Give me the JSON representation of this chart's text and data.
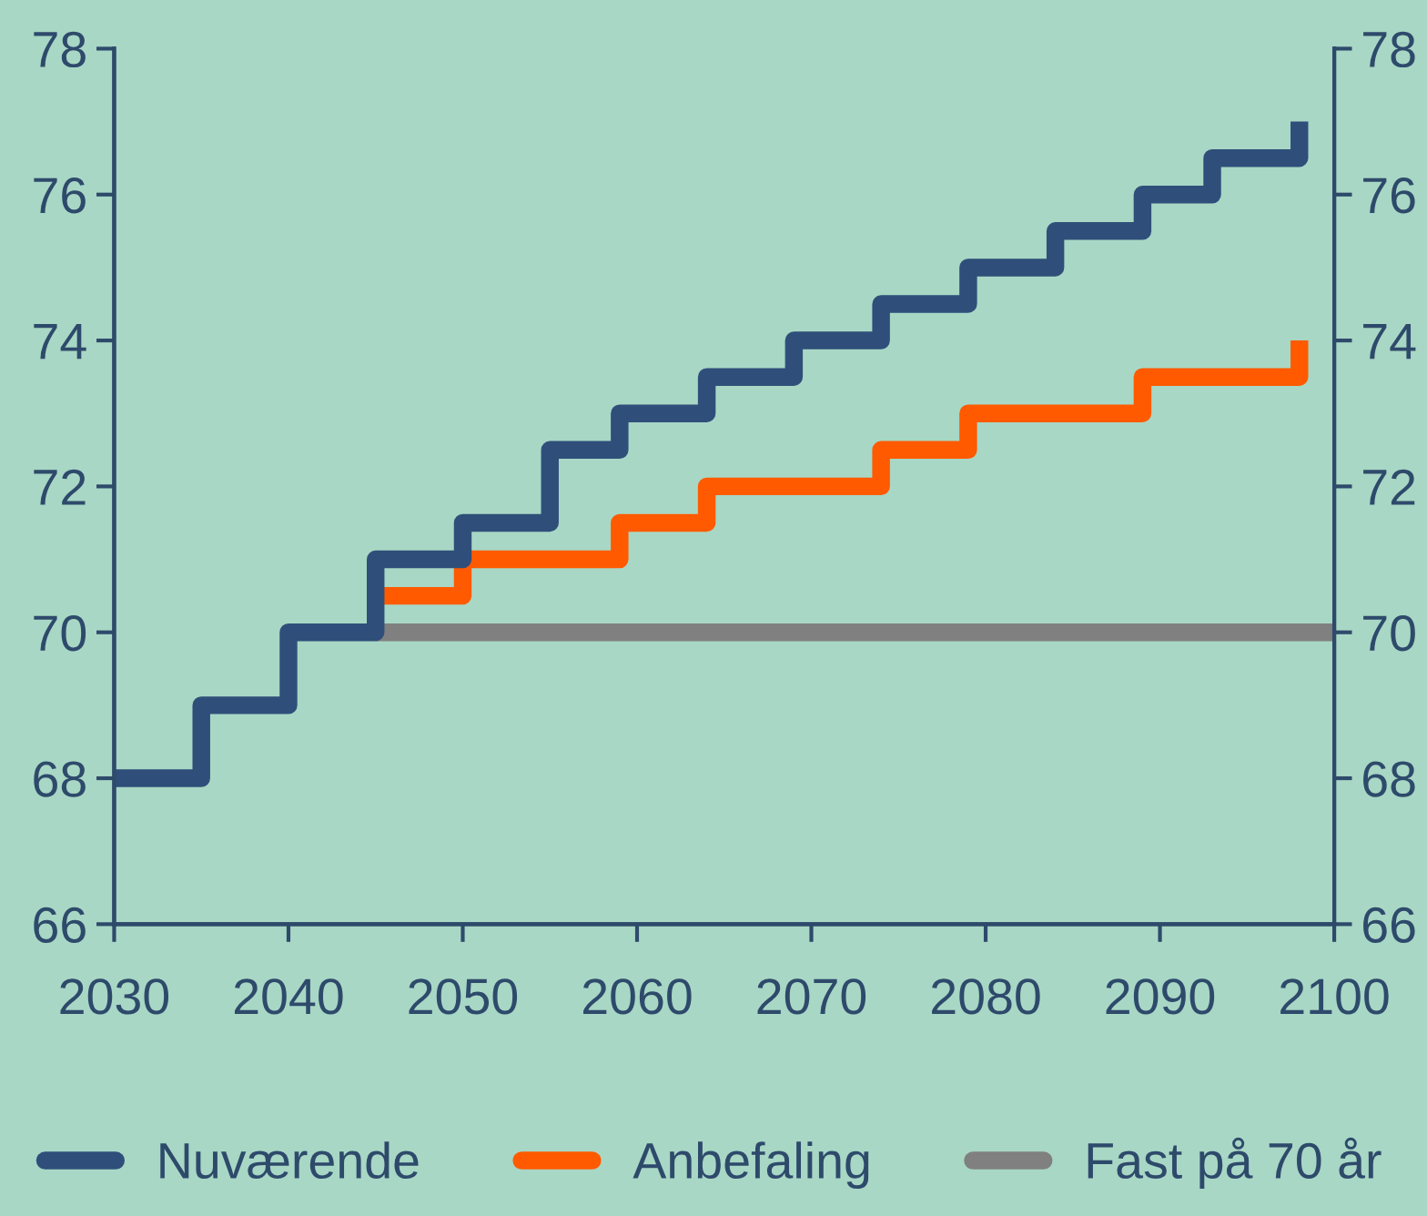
{
  "chart_data": {
    "type": "step",
    "xlim": [
      2030,
      2100
    ],
    "xticks": [
      2030,
      2040,
      2050,
      2060,
      2070,
      2080,
      2090,
      2100
    ],
    "ylim": [
      66,
      78
    ],
    "yticks": [
      66,
      68,
      70,
      72,
      74,
      76,
      78
    ],
    "y2lim": [
      66,
      78
    ],
    "y2ticks": [
      66,
      68,
      70,
      72,
      74,
      76,
      78
    ],
    "grid": false,
    "legend": "bottom",
    "line_style": "solid",
    "marker": "none",
    "series": [
      {
        "name": "Fast på 70 år",
        "color": "#808080",
        "x": [
          2045,
          2100
        ],
        "values": [
          70,
          70
        ]
      },
      {
        "name": "Anbefaling",
        "color": "#ff5a00",
        "x": [
          2045,
          2050,
          2059,
          2064,
          2074,
          2079,
          2089,
          2098
        ],
        "values": [
          70.5,
          71,
          71.5,
          72,
          72.5,
          73,
          73.5,
          74
        ]
      },
      {
        "name": "Nuværende",
        "color": "#2f4f7a",
        "x": [
          2030,
          2035,
          2040,
          2045,
          2050,
          2055,
          2059,
          2064,
          2069,
          2074,
          2079,
          2084,
          2089,
          2093,
          2098
        ],
        "values": [
          68,
          69,
          70,
          71,
          71.5,
          72.5,
          73,
          73.5,
          74,
          74.5,
          75,
          75.5,
          76,
          76.5,
          77
        ]
      }
    ]
  }
}
